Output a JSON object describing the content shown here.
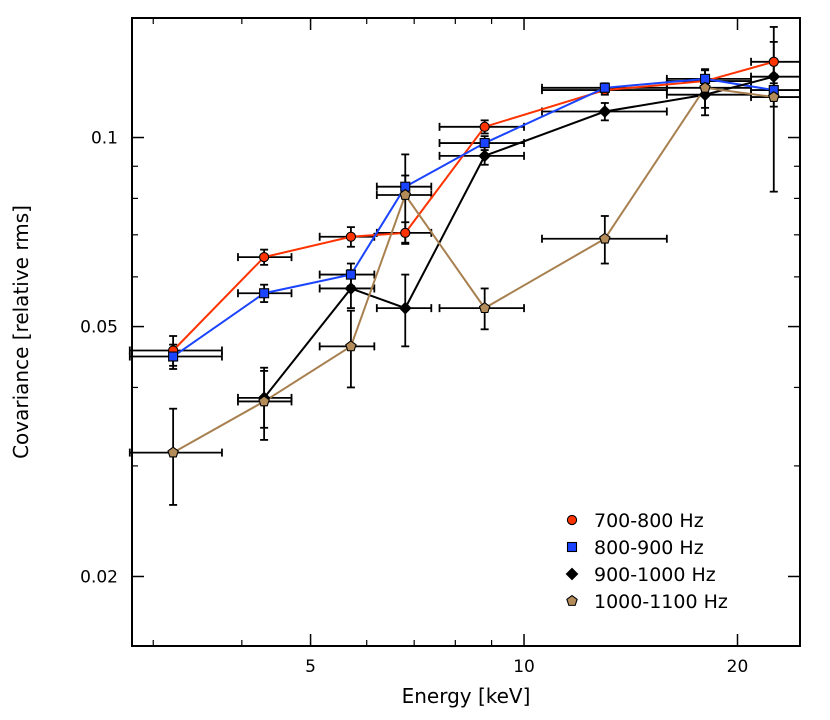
{
  "chart_data": {
    "type": "scatter",
    "xlabel": "Energy [keV]",
    "ylabel": "Covariance [relative rms]",
    "x_scale": "log",
    "y_scale": "log",
    "xlim": [
      2.8,
      24.5
    ],
    "ylim": [
      0.0155,
      0.155
    ],
    "x_ticks": [
      {
        "value": 5,
        "label": "5"
      },
      {
        "value": 10,
        "label": "10"
      },
      {
        "value": 20,
        "label": "20"
      }
    ],
    "y_ticks": [
      {
        "value": 0.02,
        "label": "0.02"
      },
      {
        "value": 0.05,
        "label": "0.05"
      },
      {
        "value": 0.1,
        "label": "0.1"
      }
    ],
    "legend_position": "bottom-right",
    "series": [
      {
        "name": "700-800 Hz",
        "color": "#ff3300",
        "line_color": "#ff3300",
        "marker": "circle",
        "points": [
          {
            "x": 3.2,
            "y": 0.0458,
            "xerr": [
              0.42,
              0.55
            ],
            "yerr": [
              0.0025,
              0.0025
            ]
          },
          {
            "x": 4.3,
            "y": 0.0645,
            "xerr": [
              0.35,
              0.4
            ],
            "yerr": [
              0.0018,
              0.0018
            ]
          },
          {
            "x": 5.7,
            "y": 0.0695,
            "xerr": [
              0.55,
              0.45
            ],
            "yerr": [
              0.0025,
              0.0025
            ]
          },
          {
            "x": 6.8,
            "y": 0.0705,
            "xerr": [
              0.6,
              0.6
            ],
            "yerr": [
              0.0028,
              0.0028
            ]
          },
          {
            "x": 8.8,
            "y": 0.104,
            "xerr": [
              1.2,
              1.2
            ],
            "yerr": [
              0.0025,
              0.0025
            ]
          },
          {
            "x": 13.0,
            "y": 0.119,
            "xerr": [
              2.4,
              2.9
            ],
            "yerr": [
              0.002,
              0.002
            ]
          },
          {
            "x": 18.0,
            "y": 0.123,
            "xerr": [
              2.1,
              2.9
            ],
            "yerr": [
              0.005,
              0.005
            ]
          },
          {
            "x": 22.5,
            "y": 0.132,
            "xerr": [
              1.6,
              2.0
            ],
            "yerr": [
              0.01,
              0.01
            ]
          }
        ]
      },
      {
        "name": "800-900 Hz",
        "color": "#1a44ff",
        "line_color": "#1a44ff",
        "marker": "square",
        "points": [
          {
            "x": 3.2,
            "y": 0.0448,
            "xerr": [
              0.42,
              0.55
            ],
            "yerr": [
              0.002,
              0.002
            ]
          },
          {
            "x": 4.3,
            "y": 0.0565,
            "xerr": [
              0.35,
              0.4
            ],
            "yerr": [
              0.0018,
              0.0018
            ]
          },
          {
            "x": 5.7,
            "y": 0.0605,
            "xerr": [
              0.55,
              0.45
            ],
            "yerr": [
              0.0025,
              0.0025
            ]
          },
          {
            "x": 6.8,
            "y": 0.0835,
            "xerr": [
              0.6,
              0.6
            ],
            "yerr": [
              0.0035,
              0.0035
            ]
          },
          {
            "x": 8.8,
            "y": 0.098,
            "xerr": [
              1.2,
              1.2
            ],
            "yerr": [
              0.0025,
              0.0025
            ]
          },
          {
            "x": 13.0,
            "y": 0.12,
            "xerr": [
              2.4,
              2.9
            ],
            "yerr": [
              0.002,
              0.002
            ]
          },
          {
            "x": 18.0,
            "y": 0.124,
            "xerr": [
              2.1,
              2.9
            ],
            "yerr": [
              0.004,
              0.004
            ]
          },
          {
            "x": 22.5,
            "y": 0.119,
            "xerr": [
              1.6,
              2.0
            ],
            "yerr": [
              0.007,
              0.007
            ]
          }
        ]
      },
      {
        "name": "900-1000 Hz",
        "color": "#000000",
        "line_color": "#000000",
        "marker": "diamond",
        "points": [
          {
            "x": 4.3,
            "y": 0.0385,
            "xerr": [
              0.35,
              0.4
            ],
            "yerr": [
              0.004,
              0.004
            ]
          },
          {
            "x": 5.7,
            "y": 0.0575,
            "xerr": [
              0.55,
              0.45
            ],
            "yerr": [
              0.004,
              0.004
            ]
          },
          {
            "x": 6.8,
            "y": 0.0535,
            "xerr": [
              0.6,
              0.6
            ],
            "yerr": [
              0.007,
              0.007
            ]
          },
          {
            "x": 8.8,
            "y": 0.0935,
            "xerr": [
              1.2,
              1.2
            ],
            "yerr": [
              0.003,
              0.003
            ]
          },
          {
            "x": 13.0,
            "y": 0.11,
            "xerr": [
              2.4,
              2.9
            ],
            "yerr": [
              0.0035,
              0.0035
            ]
          },
          {
            "x": 18.0,
            "y": 0.117,
            "xerr": [
              2.1,
              2.9
            ],
            "yerr": [
              0.0085,
              0.0085
            ]
          },
          {
            "x": 22.5,
            "y": 0.125,
            "xerr": [
              1.6,
              2.0
            ],
            "yerr": [
              0.007,
              0.007
            ]
          }
        ]
      },
      {
        "name": "1000-1100 Hz",
        "color": "#b38c5a",
        "line_color": "#a88050",
        "marker": "pentagon",
        "points": [
          {
            "x": 3.2,
            "y": 0.0315,
            "xerr": [
              0.42,
              0.55
            ],
            "yerr": [
              0.0055,
              0.0055
            ]
          },
          {
            "x": 4.3,
            "y": 0.038,
            "xerr": [
              0.35,
              0.4
            ],
            "yerr": [
              0.005,
              0.005
            ]
          },
          {
            "x": 5.7,
            "y": 0.0465,
            "xerr": [
              0.55,
              0.45
            ],
            "yerr": [
              0.0065,
              0.0065
            ]
          },
          {
            "x": 6.8,
            "y": 0.081,
            "xerr": [
              0.6,
              0.6
            ],
            "yerr": [
              0.013,
              0.013
            ]
          },
          {
            "x": 8.8,
            "y": 0.0535,
            "xerr": [
              1.2,
              1.2
            ],
            "yerr": [
              0.004,
              0.004
            ]
          },
          {
            "x": 13.0,
            "y": 0.069,
            "xerr": [
              2.4,
              2.9
            ],
            "yerr": [
              0.006,
              0.006
            ]
          },
          {
            "x": 18.0,
            "y": 0.12,
            "xerr": [
              2.1,
              2.9
            ],
            "yerr": [
              0.0085,
              0.0085
            ]
          },
          {
            "x": 22.5,
            "y": 0.116,
            "xerr": [
              1.6,
              2.0
            ],
            "yerr": [
              0.034,
              0.034
            ]
          }
        ]
      }
    ]
  }
}
